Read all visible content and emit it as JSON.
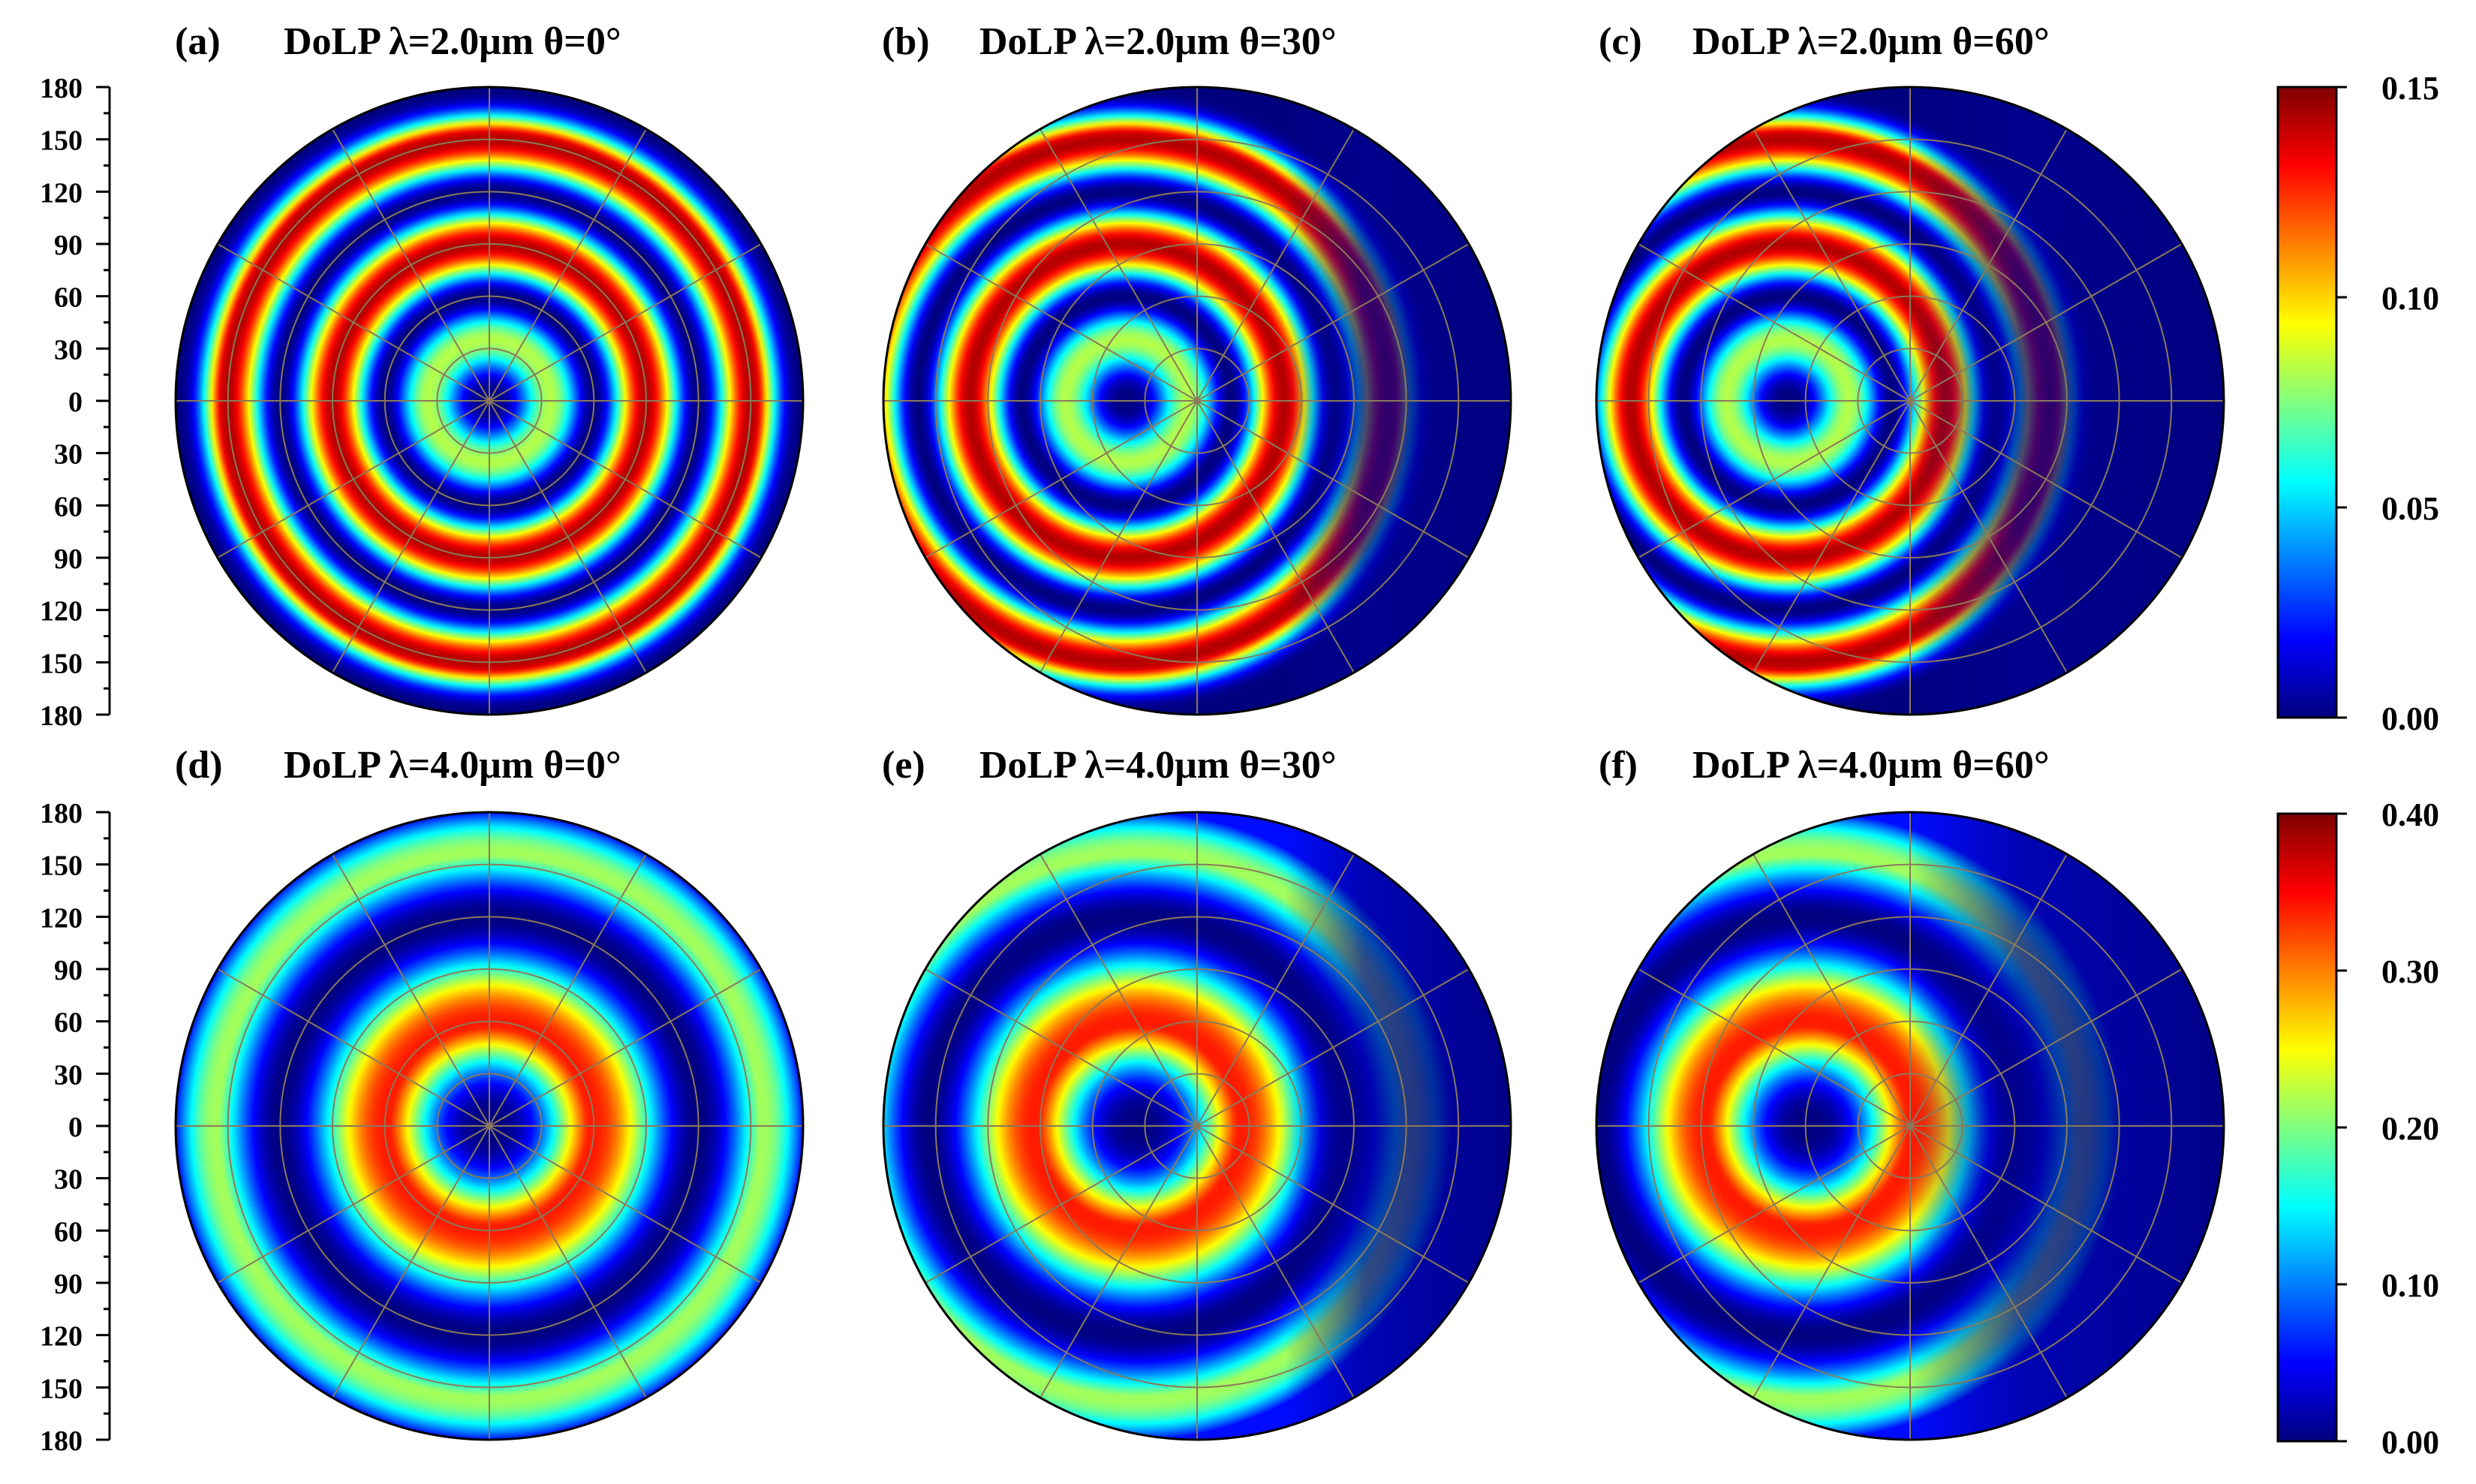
{
  "colors": {
    "jet": [
      "#00007f",
      "#0000ff",
      "#007fff",
      "#00ffff",
      "#7fff7f",
      "#ffff00",
      "#ff7f00",
      "#ff0000",
      "#7f0000"
    ],
    "grid": "#8a7a5a",
    "text": "#000000"
  },
  "chart_data": [
    {
      "type": "heatmap",
      "coordinate_system": "polar",
      "panel_label": "(a)",
      "quantity": "DoLP",
      "wavelength": "λ=2.0μm",
      "incidence": "θ=0°",
      "title_text": "DoLP  λ=2.0μm θ=0°",
      "y_ticks": [
        "180",
        "150",
        "120",
        "90",
        "60",
        "30",
        "0",
        "30",
        "60",
        "90",
        "120",
        "150",
        "180"
      ],
      "radial_range": [
        0,
        180
      ],
      "polar_grid_rings": [
        30,
        60,
        90,
        120,
        150,
        180
      ],
      "polar_grid_spokes_deg": [
        0,
        30,
        60,
        90,
        120,
        150,
        180,
        210,
        240,
        270,
        300,
        330
      ],
      "colorbar_range": [
        0.0,
        0.15
      ],
      "field": {
        "theta_in_deg": 0,
        "rings": 3,
        "peak_fraction": 0.95
      }
    },
    {
      "type": "heatmap",
      "coordinate_system": "polar",
      "panel_label": "(b)",
      "quantity": "DoLP",
      "wavelength": "λ=2.0μm",
      "incidence": "θ=30°",
      "title_text": "DoLP  λ=2.0μm θ=30°",
      "radial_range": [
        0,
        180
      ],
      "colorbar_range": [
        0.0,
        0.15
      ],
      "field": {
        "theta_in_deg": 30,
        "rings": 3,
        "peak_fraction": 0.95
      }
    },
    {
      "type": "heatmap",
      "coordinate_system": "polar",
      "panel_label": "(c)",
      "quantity": "DoLP",
      "wavelength": "λ=2.0μm",
      "incidence": "θ=60°",
      "title_text": "DoLP  λ=2.0μm θ=60°",
      "radial_range": [
        0,
        180
      ],
      "colorbar_range": [
        0.0,
        0.15
      ],
      "field": {
        "theta_in_deg": 60,
        "rings": 3,
        "peak_fraction": 0.95
      }
    },
    {
      "type": "heatmap",
      "coordinate_system": "polar",
      "panel_label": "(d)",
      "quantity": "DoLP",
      "wavelength": "λ=4.0μm",
      "incidence": "θ=0°",
      "title_text": "DoLP  λ=4.0μm θ=0°",
      "y_ticks": [
        "180",
        "150",
        "120",
        "90",
        "60",
        "30",
        "0",
        "30",
        "60",
        "90",
        "120",
        "150",
        "180"
      ],
      "radial_range": [
        0,
        180
      ],
      "colorbar_range": [
        0.0,
        0.4
      ],
      "field": {
        "theta_in_deg": 0,
        "rings": 1.5,
        "peak_fraction": 0.85
      }
    },
    {
      "type": "heatmap",
      "coordinate_system": "polar",
      "panel_label": "(e)",
      "quantity": "DoLP",
      "wavelength": "λ=4.0μm",
      "incidence": "θ=30°",
      "title_text": "DoLP  λ=4.0μm θ=30°",
      "radial_range": [
        0,
        180
      ],
      "colorbar_range": [
        0.0,
        0.4
      ],
      "field": {
        "theta_in_deg": 30,
        "rings": 1.5,
        "peak_fraction": 0.85
      }
    },
    {
      "type": "heatmap",
      "coordinate_system": "polar",
      "panel_label": "(f)",
      "quantity": "DoLP",
      "wavelength": "λ=4.0μm",
      "incidence": "θ=60°",
      "title_text": "DoLP  λ=4.0μm θ=60°",
      "radial_range": [
        0,
        180
      ],
      "colorbar_range": [
        0.0,
        0.4
      ],
      "field": {
        "theta_in_deg": 60,
        "rings": 1.5,
        "peak_fraction": 0.85
      }
    }
  ],
  "colorbars": [
    {
      "ticks": [
        "0.15",
        "0.10",
        "0.05",
        "0.00"
      ],
      "range": [
        0.0,
        0.15
      ]
    },
    {
      "ticks": [
        "0.40",
        "0.30",
        "0.20",
        "0.10",
        "0.00"
      ],
      "range": [
        0.0,
        0.4
      ]
    }
  ]
}
